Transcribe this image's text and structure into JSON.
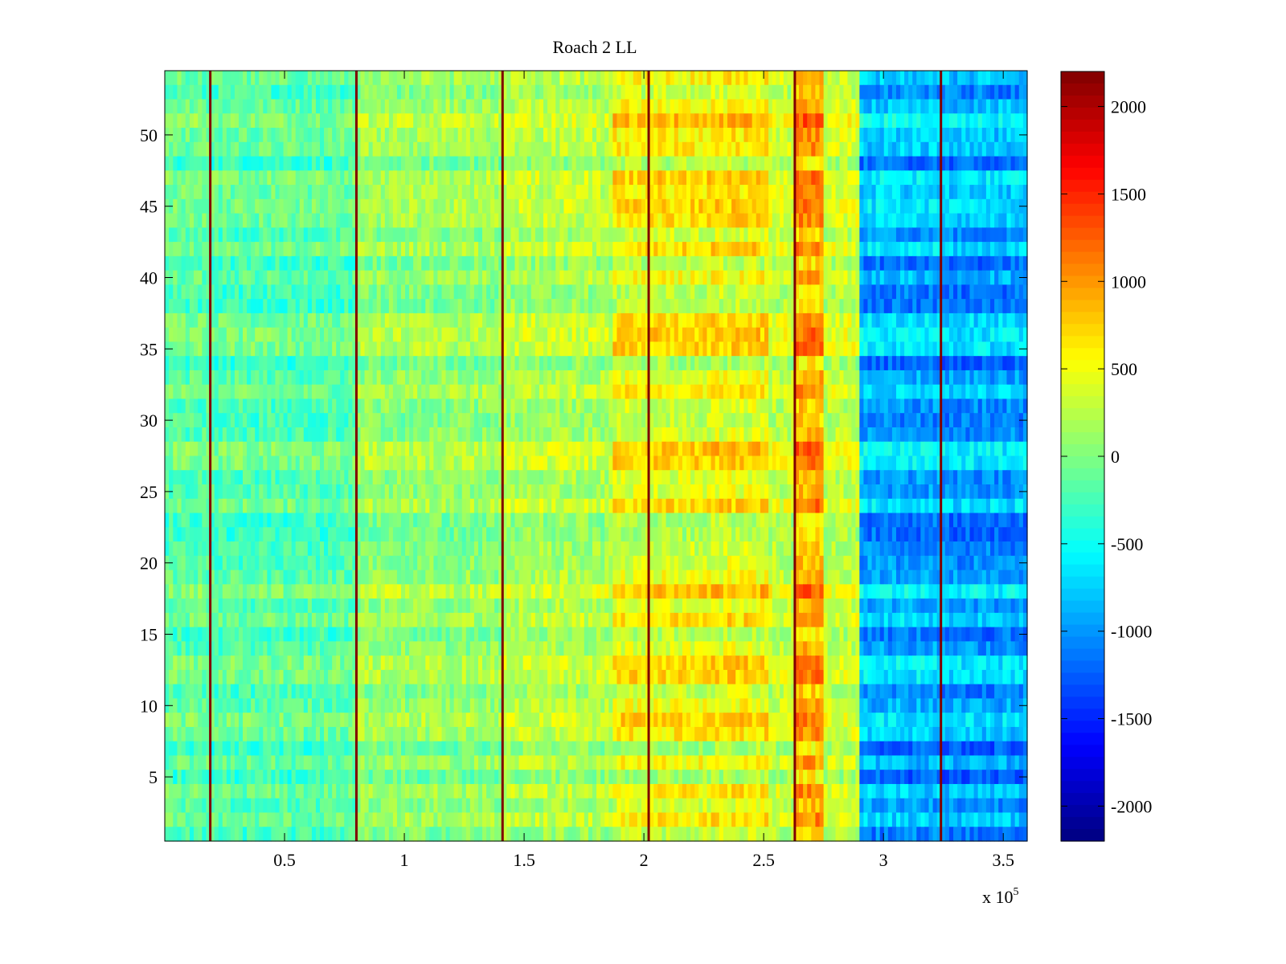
{
  "chart_data": {
    "type": "heatmap",
    "title": "Roach 2 LL",
    "xlabel": "",
    "ylabel": "",
    "x_exponent_label": "x 10",
    "x_exponent_power": "5",
    "xlim": [
      0,
      3.6
    ],
    "ylim": [
      0.5,
      54.5
    ],
    "x_ticks": [
      0.5,
      1,
      1.5,
      2,
      2.5,
      3,
      3.5
    ],
    "x_tick_labels": [
      "0.5",
      "1",
      "1.5",
      "2",
      "2.5",
      "3",
      "3.5"
    ],
    "y_ticks": [
      5,
      10,
      15,
      20,
      25,
      30,
      35,
      40,
      45,
      50
    ],
    "y_tick_labels": [
      "5",
      "10",
      "15",
      "20",
      "25",
      "30",
      "35",
      "40",
      "45",
      "50"
    ],
    "colorbar": {
      "colormap": "jet",
      "clim": [
        -2200,
        2200
      ],
      "ticks": [
        2000,
        1500,
        1000,
        500,
        0,
        -500,
        -1000,
        -1500,
        -2000
      ],
      "tick_labels": [
        "2000",
        "1500",
        "1000",
        "500",
        "0",
        "-500",
        "-1000",
        "-1500",
        "-2000"
      ]
    },
    "grid": false,
    "rows": 54,
    "segment_boundaries_x": [
      0.19,
      0.8,
      1.41,
      2.02,
      2.63,
      3.24
    ],
    "segments": [
      {
        "x": [
          0.0,
          0.19
        ],
        "level": -150
      },
      {
        "x": [
          0.19,
          0.8
        ],
        "level": -180
      },
      {
        "x": [
          0.8,
          1.41
        ],
        "level": 80
      },
      {
        "x": [
          1.41,
          1.87
        ],
        "level": 200
      },
      {
        "x": [
          1.87,
          2.28
        ],
        "level": 450
      },
      {
        "x": [
          2.28,
          2.52
        ],
        "level": 500
      },
      {
        "x": [
          2.52,
          2.63
        ],
        "level": 300
      },
      {
        "x": [
          2.63,
          2.75
        ],
        "level": 900
      },
      {
        "x": [
          2.75,
          2.9
        ],
        "level": 300
      },
      {
        "x": [
          2.9,
          3.24
        ],
        "level": -900
      },
      {
        "x": [
          3.24,
          3.6
        ],
        "level": -950
      }
    ],
    "colors": {
      "boundary_line": "#800000",
      "axes": "#000000",
      "background": "#ffffff"
    }
  }
}
